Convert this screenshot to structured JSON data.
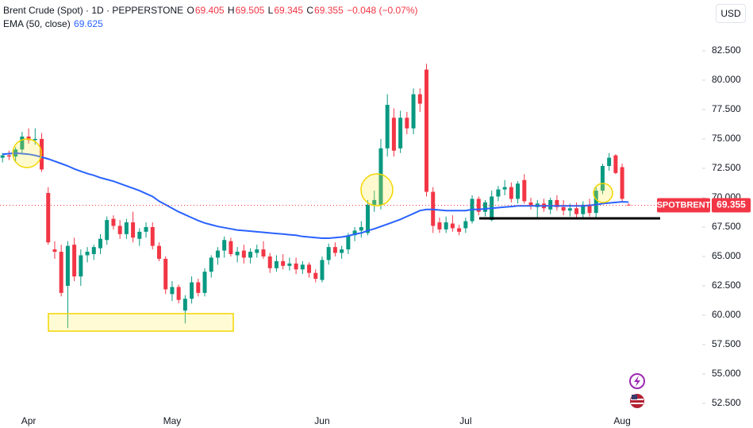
{
  "chart_data": {
    "type": "candlestick",
    "title": "Brent Crude (Spot) · 1D · PEPPERSTONE",
    "ohlc_labels": [
      "O",
      "H",
      "L",
      "C"
    ],
    "change": "−0.048 (−0.07%)",
    "currency": "USD",
    "price_tag": "SPOTBRENT",
    "up_color": "#089981",
    "down_color": "#f23645",
    "grid": false,
    "categories": [
      null,
      null,
      null,
      null,
      "Apr",
      null,
      null,
      null,
      null,
      null,
      null,
      null,
      null,
      null,
      null,
      null,
      null,
      null,
      null,
      null,
      null,
      null,
      null,
      null,
      null,
      null,
      "May",
      null,
      null,
      null,
      null,
      null,
      null,
      null,
      null,
      null,
      null,
      null,
      null,
      null,
      null,
      null,
      null,
      null,
      null,
      null,
      null,
      null,
      null,
      "Jun",
      null,
      null,
      null,
      null,
      null,
      null,
      null,
      null,
      null,
      null,
      null,
      null,
      null,
      null,
      null,
      null,
      null,
      null,
      null,
      null,
      null,
      "Jul",
      null,
      null,
      null,
      null,
      null,
      null,
      null,
      null,
      null,
      null,
      null,
      null,
      null,
      null,
      null,
      null,
      null,
      null,
      null,
      null,
      null,
      null,
      null,
      "Aug",
      null
    ],
    "open": [
      73.4,
      73.6,
      73.5,
      74.1,
      75.2,
      74.9,
      75.0,
      70.4,
      65.6,
      65.4,
      62.5,
      66.0,
      63.3,
      65.1,
      65.2,
      65.7,
      66.4,
      68.2,
      67.6,
      66.9,
      67.9,
      66.5,
      67.1,
      67.5,
      65.9,
      64.8,
      61.8,
      62.4,
      60.4,
      61.4,
      62.8,
      61.9,
      63.7,
      64.9,
      65.5,
      66.3,
      65.1,
      65.5,
      64.9,
      65.3,
      65.6,
      65.0,
      64.0,
      64.6,
      64.2,
      64.4,
      63.9,
      64.3,
      63.6,
      63.0,
      64.7,
      65.8,
      65.3,
      65.6,
      66.8,
      67.2,
      67.0,
      69.4,
      69.4,
      74.2,
      76.8,
      74.2,
      76.8,
      75.9,
      78.8,
      80.9,
      70.5,
      67.9,
      67.3,
      67.8,
      67.4,
      67.4,
      68.0,
      69.9,
      68.8,
      68.1,
      70.1,
      70.7,
      70.9,
      69.9,
      71.5,
      69.6,
      69.2,
      69.5,
      69.0,
      69.8,
      69.2,
      68.9,
      69.1,
      68.6,
      69.4,
      68.7,
      70.6,
      72.7,
      73.6,
      72.6,
      69.405
    ],
    "high": [
      73.8,
      74.0,
      74.3,
      75.6,
      75.9,
      75.9,
      75.5,
      70.9,
      66.3,
      66.0,
      66.3,
      66.6,
      65.6,
      65.8,
      66.0,
      66.9,
      68.4,
      68.5,
      68.1,
      68.2,
      68.8,
      67.4,
      67.9,
      67.9,
      66.2,
      65.0,
      62.9,
      62.6,
      61.7,
      63.3,
      63.1,
      64.0,
      65.1,
      65.8,
      66.7,
      66.6,
      65.8,
      66.0,
      65.7,
      66.0,
      66.3,
      65.3,
      65.1,
      65.2,
      64.9,
      64.9,
      64.6,
      64.5,
      63.9,
      65.0,
      66.1,
      66.2,
      65.9,
      67.0,
      67.5,
      68.0,
      69.8,
      70.6,
      75.0,
      78.8,
      77.6,
      77.4,
      77.3,
      79.3,
      79.3,
      81.4,
      70.9,
      68.3,
      68.4,
      68.5,
      67.7,
      68.3,
      70.2,
      70.1,
      69.8,
      70.6,
      71.0,
      71.5,
      71.3,
      71.4,
      72.0,
      70.0,
      69.8,
      69.9,
      70.0,
      70.2,
      69.8,
      69.5,
      69.6,
      69.7,
      69.9,
      70.9,
      72.9,
      73.8,
      73.7,
      72.9,
      69.505
    ],
    "low": [
      73.0,
      73.2,
      73.1,
      73.8,
      74.6,
      74.5,
      72.2,
      66.0,
      64.8,
      61.6,
      58.9,
      62.9,
      62.5,
      64.5,
      64.7,
      65.2,
      66.0,
      67.3,
      66.5,
      66.5,
      66.2,
      65.9,
      66.6,
      65.6,
      64.6,
      61.8,
      61.2,
      61.0,
      59.3,
      61.0,
      61.6,
      61.6,
      63.2,
      64.3,
      64.9,
      65.0,
      64.5,
      64.4,
      64.4,
      64.9,
      64.8,
      63.6,
      63.7,
      63.9,
      63.8,
      63.5,
      63.5,
      63.2,
      62.8,
      62.8,
      64.3,
      65.0,
      64.8,
      65.2,
      66.3,
      66.6,
      66.8,
      68.8,
      69.0,
      73.5,
      73.5,
      73.8,
      75.4,
      75.4,
      77.3,
      70.1,
      67.0,
      67.0,
      67.0,
      67.1,
      66.8,
      67.0,
      67.8,
      68.5,
      68.4,
      68.0,
      69.7,
      70.2,
      69.6,
      69.5,
      69.5,
      69.0,
      68.3,
      68.8,
      68.6,
      68.9,
      68.5,
      68.4,
      68.2,
      68.3,
      68.4,
      68.3,
      70.3,
      72.3,
      72.0,
      69.7,
      69.345
    ],
    "close": [
      73.6,
      73.5,
      74.1,
      75.2,
      74.9,
      75.0,
      72.4,
      66.2,
      65.4,
      61.9,
      65.9,
      63.3,
      65.1,
      65.4,
      65.8,
      66.5,
      68.1,
      67.6,
      66.9,
      67.9,
      66.6,
      67.1,
      67.5,
      65.9,
      64.8,
      62.2,
      62.4,
      61.3,
      61.4,
      62.8,
      61.9,
      63.7,
      64.9,
      65.5,
      66.4,
      65.2,
      65.4,
      64.9,
      65.4,
      65.6,
      65.0,
      64.0,
      64.6,
      64.2,
      64.4,
      63.9,
      64.3,
      63.6,
      63.1,
      64.7,
      65.8,
      65.3,
      65.6,
      66.8,
      67.2,
      67.5,
      69.4,
      69.8,
      74.2,
      77.9,
      74.0,
      76.8,
      75.9,
      78.8,
      78.0,
      70.5,
      67.6,
      67.3,
      67.9,
      67.4,
      67.1,
      68.0,
      69.9,
      68.8,
      69.6,
      70.1,
      70.7,
      70.9,
      69.9,
      71.2,
      69.7,
      69.3,
      69.5,
      69.1,
      69.8,
      69.2,
      68.9,
      69.1,
      68.6,
      69.4,
      68.7,
      70.6,
      72.7,
      73.4,
      72.1,
      69.9,
      69.355
    ],
    "ema": {
      "name": "EMA (50, close)",
      "color": "#2962ff",
      "last_value": 69.625,
      "values": [
        73.7,
        73.75,
        73.8,
        73.75,
        73.7,
        73.6,
        73.45,
        73.3,
        73.1,
        72.9,
        72.7,
        72.45,
        72.25,
        72.05,
        71.9,
        71.7,
        71.55,
        71.4,
        71.2,
        71.0,
        70.8,
        70.6,
        70.35,
        70.1,
        69.7,
        69.4,
        69.1,
        68.8,
        68.55,
        68.3,
        68.05,
        67.85,
        67.7,
        67.55,
        67.45,
        67.35,
        67.25,
        67.2,
        67.15,
        67.1,
        67.05,
        67.0,
        66.95,
        66.9,
        66.85,
        66.8,
        66.7,
        66.65,
        66.6,
        66.55,
        66.55,
        66.6,
        66.65,
        66.75,
        66.9,
        67.0,
        67.2,
        67.35,
        67.55,
        67.75,
        67.95,
        68.15,
        68.4,
        68.65,
        68.9,
        69.0,
        69.0,
        68.95,
        68.9,
        68.9,
        68.9,
        68.9,
        69.0,
        69.0,
        69.05,
        69.1,
        69.15,
        69.2,
        69.25,
        69.3,
        69.3,
        69.3,
        69.3,
        69.3,
        69.3,
        69.3,
        69.3,
        69.3,
        69.3,
        69.3,
        69.35,
        69.4,
        69.5,
        69.55,
        69.6,
        69.65,
        69.625
      ]
    },
    "ylim": [
      51.35,
      86.82
    ],
    "yticks": [
      {
        "value": 52.5,
        "label": "52.500"
      },
      {
        "value": 55,
        "label": "55.000"
      },
      {
        "value": 57.5,
        "label": "57.500"
      },
      {
        "value": 60,
        "label": "60.000"
      },
      {
        "value": 62.5,
        "label": "62.500"
      },
      {
        "value": 65,
        "label": "65.000"
      },
      {
        "value": 67.5,
        "label": "67.500"
      },
      {
        "value": 70,
        "label": "70.000"
      },
      {
        "value": 72.5,
        "label": "72.500"
      },
      {
        "value": 75,
        "label": "75.000"
      },
      {
        "value": 77.5,
        "label": "77.500"
      },
      {
        "value": 80,
        "label": "80.000"
      },
      {
        "value": 82.5,
        "label": "82.500"
      }
    ]
  }
}
